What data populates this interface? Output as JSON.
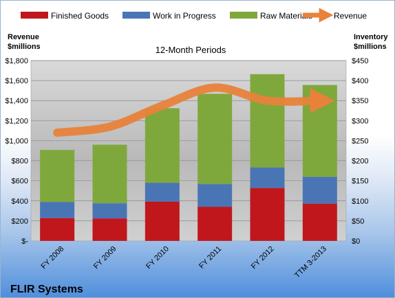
{
  "chart_data": {
    "type": "bar",
    "stacked": true,
    "title": "12-Month Periods",
    "footer": "FLIR Systems",
    "categories": [
      "FY 2008",
      "FY 2009",
      "FY 2010",
      "FY 2011",
      "FY 2012",
      "TTM 3-2013"
    ],
    "left_axis": {
      "label_line1": "Revenue",
      "label_line2": "$millions",
      "ylim": [
        0,
        1800
      ],
      "ticks": [
        0,
        200,
        400,
        600,
        800,
        1000,
        1200,
        1400,
        1600,
        1800
      ],
      "tick_labels": [
        "$-",
        "$200",
        "$400",
        "$600",
        "$800",
        "$1,000",
        "$1,200",
        "$1,400",
        "$1,600",
        "$1,800"
      ]
    },
    "right_axis": {
      "label_line1": "Inventory",
      "label_line2": "$millions",
      "ylim": [
        0,
        450
      ],
      "ticks": [
        0,
        50,
        100,
        150,
        200,
        250,
        300,
        350,
        400,
        450
      ],
      "tick_labels": [
        "$0",
        "$50",
        "$100",
        "$150",
        "$200",
        "$250",
        "$300",
        "$350",
        "$400",
        "$450"
      ]
    },
    "series": [
      {
        "name": "Finished Goods",
        "color": "#c0171d",
        "axis": "right",
        "values": [
          57,
          56,
          98,
          85,
          132,
          93
        ]
      },
      {
        "name": "Work in Progress",
        "color": "#4a75b5",
        "axis": "right",
        "values": [
          40,
          38,
          47,
          57,
          51,
          67
        ]
      },
      {
        "name": "Raw Materials",
        "color": "#7fa83c",
        "axis": "right",
        "values": [
          130,
          146,
          186,
          225,
          233,
          229
        ]
      }
    ],
    "line": {
      "name": "Revenue",
      "color": "#e8823a",
      "axis": "left",
      "values": [
        1080,
        1140,
        1350,
        1530,
        1400,
        1400
      ]
    },
    "grid": true,
    "legend_position": "top"
  }
}
